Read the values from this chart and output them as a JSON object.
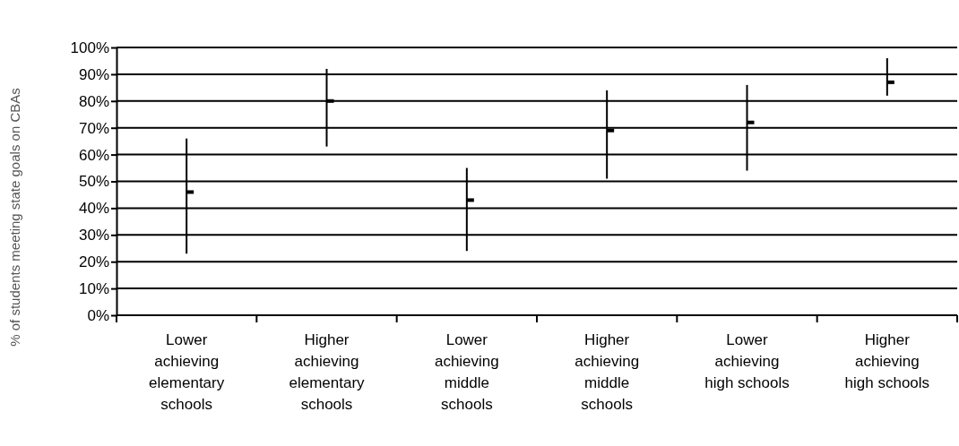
{
  "chart_data": {
    "type": "scatter",
    "ylabel": "% of students meeting state goals on CBAs",
    "categories": [
      "Lower achieving elementary schools",
      "Higher achieving elementary schools",
      "Lower achieving middle schools",
      "Higher achieving middle schools",
      "Lower achieving high schools",
      "Higher achieving high schools"
    ],
    "series": [
      {
        "color": "#000000",
        "values": [
          46,
          80,
          43,
          69,
          72,
          87
        ],
        "errors": [
          [
            23,
            66
          ],
          [
            63,
            92
          ],
          [
            24,
            55
          ],
          [
            51,
            84
          ],
          [
            54,
            86
          ],
          [
            82,
            96
          ]
        ]
      }
    ],
    "ylim": [
      0,
      100
    ],
    "yticks": [
      {
        "value": 0,
        "label": "0%"
      },
      {
        "value": 10,
        "label": "10%"
      },
      {
        "value": 20,
        "label": "20%"
      },
      {
        "value": 30,
        "label": "30%"
      },
      {
        "value": 40,
        "label": "40%"
      },
      {
        "value": 50,
        "label": "50%"
      },
      {
        "value": 60,
        "label": "60%"
      },
      {
        "value": 70,
        "label": "70%"
      },
      {
        "value": 80,
        "label": "80%"
      },
      {
        "value": 90,
        "label": "90%"
      },
      {
        "value": 100,
        "label": "100%"
      }
    ],
    "grid": "y",
    "marker": "square"
  }
}
